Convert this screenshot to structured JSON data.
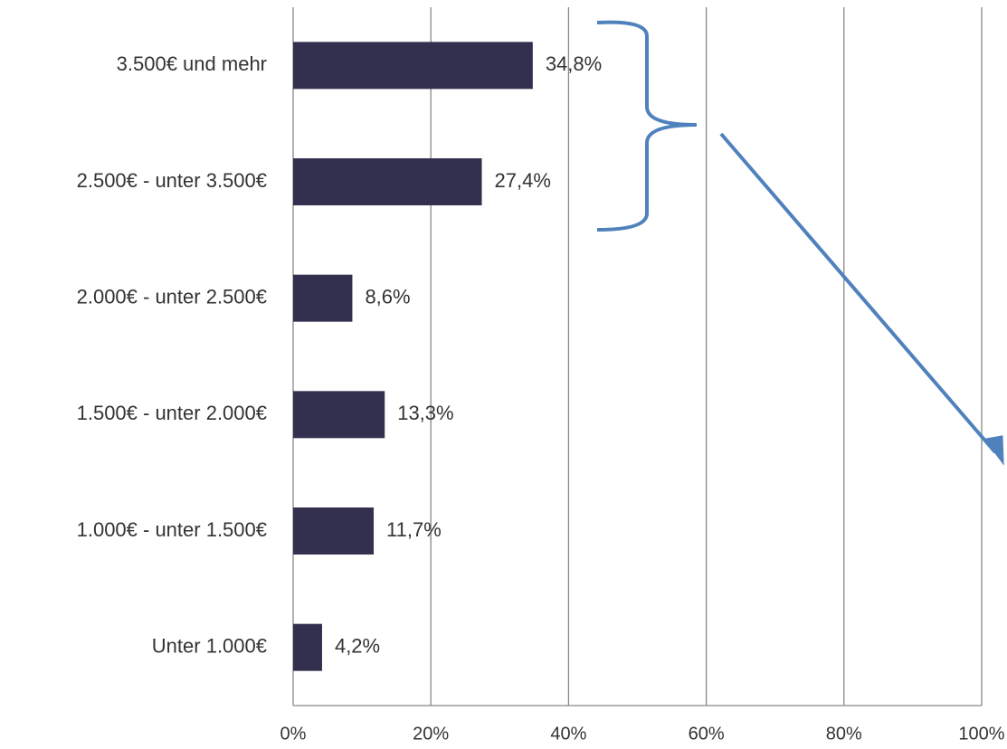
{
  "chart_data": {
    "type": "bar",
    "orientation": "horizontal",
    "categories": [
      "3.500€ und mehr",
      "2.500€ - unter 3.500€",
      "2.000€ - unter 2.500€",
      "1.500€ - unter 2.000€",
      "1.000€ - unter 1.500€",
      "Unter 1.000€"
    ],
    "values": [
      34.8,
      27.4,
      8.6,
      13.3,
      11.7,
      4.2
    ],
    "value_labels": [
      "34,8%",
      "27,4%",
      "8,6%",
      "13,3%",
      "11,7%",
      "4,2%"
    ],
    "color": "#33304f",
    "xlim": [
      0,
      100
    ],
    "xticks": [
      {
        "value": 0,
        "label": "0%"
      },
      {
        "value": 20,
        "label": "20%"
      },
      {
        "value": 40,
        "label": "40%"
      },
      {
        "value": 60,
        "label": "60%"
      },
      {
        "value": 80,
        "label": "80%"
      },
      {
        "value": 100,
        "label": "100%"
      }
    ],
    "grid": true
  }
}
